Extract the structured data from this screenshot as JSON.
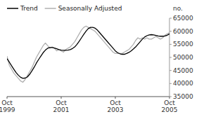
{
  "chart_data": {
    "type": "line",
    "title": "",
    "ylabel": "no.",
    "categories": [
      "Oct\n1999",
      null,
      null,
      null,
      null,
      null,
      null,
      null,
      null,
      null,
      null,
      null,
      null,
      null,
      null,
      null,
      null,
      null,
      null,
      null,
      null,
      null,
      null,
      null,
      "Oct\n2001",
      null,
      null,
      null,
      null,
      null,
      null,
      null,
      null,
      null,
      null,
      null,
      null,
      null,
      null,
      null,
      null,
      null,
      null,
      null,
      null,
      null,
      null,
      null,
      "Oct\n2003",
      null,
      null,
      null,
      null,
      null,
      null,
      null,
      null,
      null,
      null,
      null,
      null,
      null,
      null,
      null,
      null,
      null,
      null,
      null,
      null,
      null,
      null,
      null,
      "Oct\n2005"
    ],
    "series": [
      {
        "name": "Trend",
        "color": "#000000",
        "values": [
          49500,
          48200,
          46800,
          45500,
          44200,
          43200,
          42400,
          42000,
          42100,
          42500,
          43500,
          44800,
          46200,
          47800,
          49200,
          50500,
          51800,
          52800,
          53500,
          53800,
          53800,
          53600,
          53300,
          53000,
          52800,
          52700,
          52700,
          52800,
          53000,
          53400,
          54000,
          55000,
          56200,
          57500,
          58800,
          60000,
          61000,
          61500,
          61500,
          61200,
          60500,
          59500,
          58500,
          57500,
          56500,
          55500,
          54500,
          53500,
          52500,
          51800,
          51400,
          51200,
          51200,
          51500,
          51900,
          52500,
          53200,
          54000,
          55000,
          56000,
          57000,
          57800,
          58300,
          58600,
          58700,
          58600,
          58400,
          58200,
          58100,
          58100,
          58200,
          58500,
          59000
        ]
      },
      {
        "name": "Seasonally Adjusted",
        "color": "#b0b0b0",
        "values": [
          50500,
          47000,
          45500,
          44000,
          43000,
          42000,
          41000,
          40500,
          41500,
          43000,
          44500,
          46000,
          48000,
          50000,
          51500,
          53000,
          54500,
          55500,
          54500,
          53500,
          54000,
          53500,
          52500,
          53000,
          52500,
          52000,
          53000,
          53500,
          54000,
          55000,
          56000,
          57500,
          59000,
          60500,
          61500,
          62000,
          61500,
          61000,
          60500,
          60000,
          59000,
          58000,
          57000,
          56000,
          55000,
          54000,
          53000,
          52000,
          51500,
          51500,
          51500,
          51500,
          52000,
          52500,
          53000,
          54000,
          55000,
          56500,
          57500,
          57000,
          57500,
          57000,
          57500,
          57000,
          57000,
          57500,
          58000,
          57500,
          57000,
          57500,
          58500,
          59000,
          59500
        ]
      }
    ],
    "ylim": [
      35000,
      65000
    ],
    "yticks": [
      35000,
      40000,
      45000,
      50000,
      55000,
      60000,
      65000
    ],
    "grid": false,
    "legend": "upper-left"
  }
}
